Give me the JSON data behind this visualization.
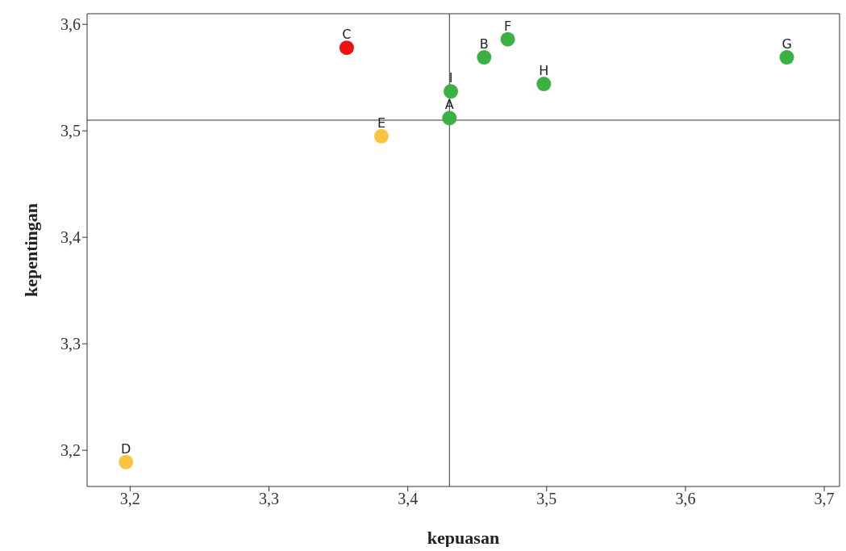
{
  "chart_data": {
    "type": "scatter",
    "xlabel": "kepuasan",
    "ylabel": "kepentingan",
    "x": [
      3.43,
      3.455,
      3.356,
      3.197,
      3.381,
      3.472,
      3.673,
      3.498,
      3.431
    ],
    "values": [
      3.512,
      3.569,
      3.578,
      3.189,
      3.495,
      3.586,
      3.569,
      3.544,
      3.537
    ],
    "colors": [
      "#3bb143",
      "#3bb143",
      "#ee1111",
      "#fbc440",
      "#fbc440",
      "#3bb143",
      "#3bb143",
      "#3bb143",
      "#3bb143"
    ],
    "marker": "circle",
    "grid": false,
    "legend": false,
    "xlim": [
      3.169,
      3.711
    ],
    "ylim": [
      3.166,
      3.61
    ],
    "xticks": [
      {
        "value": 3.2,
        "label": "3,2"
      },
      {
        "value": 3.3,
        "label": "3,3"
      },
      {
        "value": 3.4,
        "label": "3,4"
      },
      {
        "value": 3.5,
        "label": "3,5"
      },
      {
        "value": 3.6,
        "label": "3,6"
      },
      {
        "value": 3.7,
        "label": "3,7"
      }
    ],
    "yticks": [
      {
        "value": 3.2,
        "label": "3,2"
      },
      {
        "value": 3.3,
        "label": "3,3"
      },
      {
        "value": 3.4,
        "label": "3,4"
      },
      {
        "value": 3.5,
        "label": "3,5"
      },
      {
        "value": 3.6,
        "label": "3,6"
      }
    ],
    "ref_lines": [
      {
        "axis": "x",
        "value": 3.43,
        "color": "#333333"
      },
      {
        "axis": "y",
        "value": 3.51,
        "color": "#333333"
      }
    ],
    "annotations": [
      {
        "text": "A",
        "x": 3.43,
        "y": 3.512
      },
      {
        "text": "B",
        "x": 3.455,
        "y": 3.569
      },
      {
        "text": "C",
        "x": 3.356,
        "y": 3.578
      },
      {
        "text": "D",
        "x": 3.197,
        "y": 3.189
      },
      {
        "text": "E",
        "x": 3.381,
        "y": 3.495
      },
      {
        "text": "F",
        "x": 3.472,
        "y": 3.586
      },
      {
        "text": "G",
        "x": 3.673,
        "y": 3.569
      },
      {
        "text": "H",
        "x": 3.498,
        "y": 3.544
      },
      {
        "text": "I",
        "x": 3.431,
        "y": 3.537
      }
    ]
  }
}
